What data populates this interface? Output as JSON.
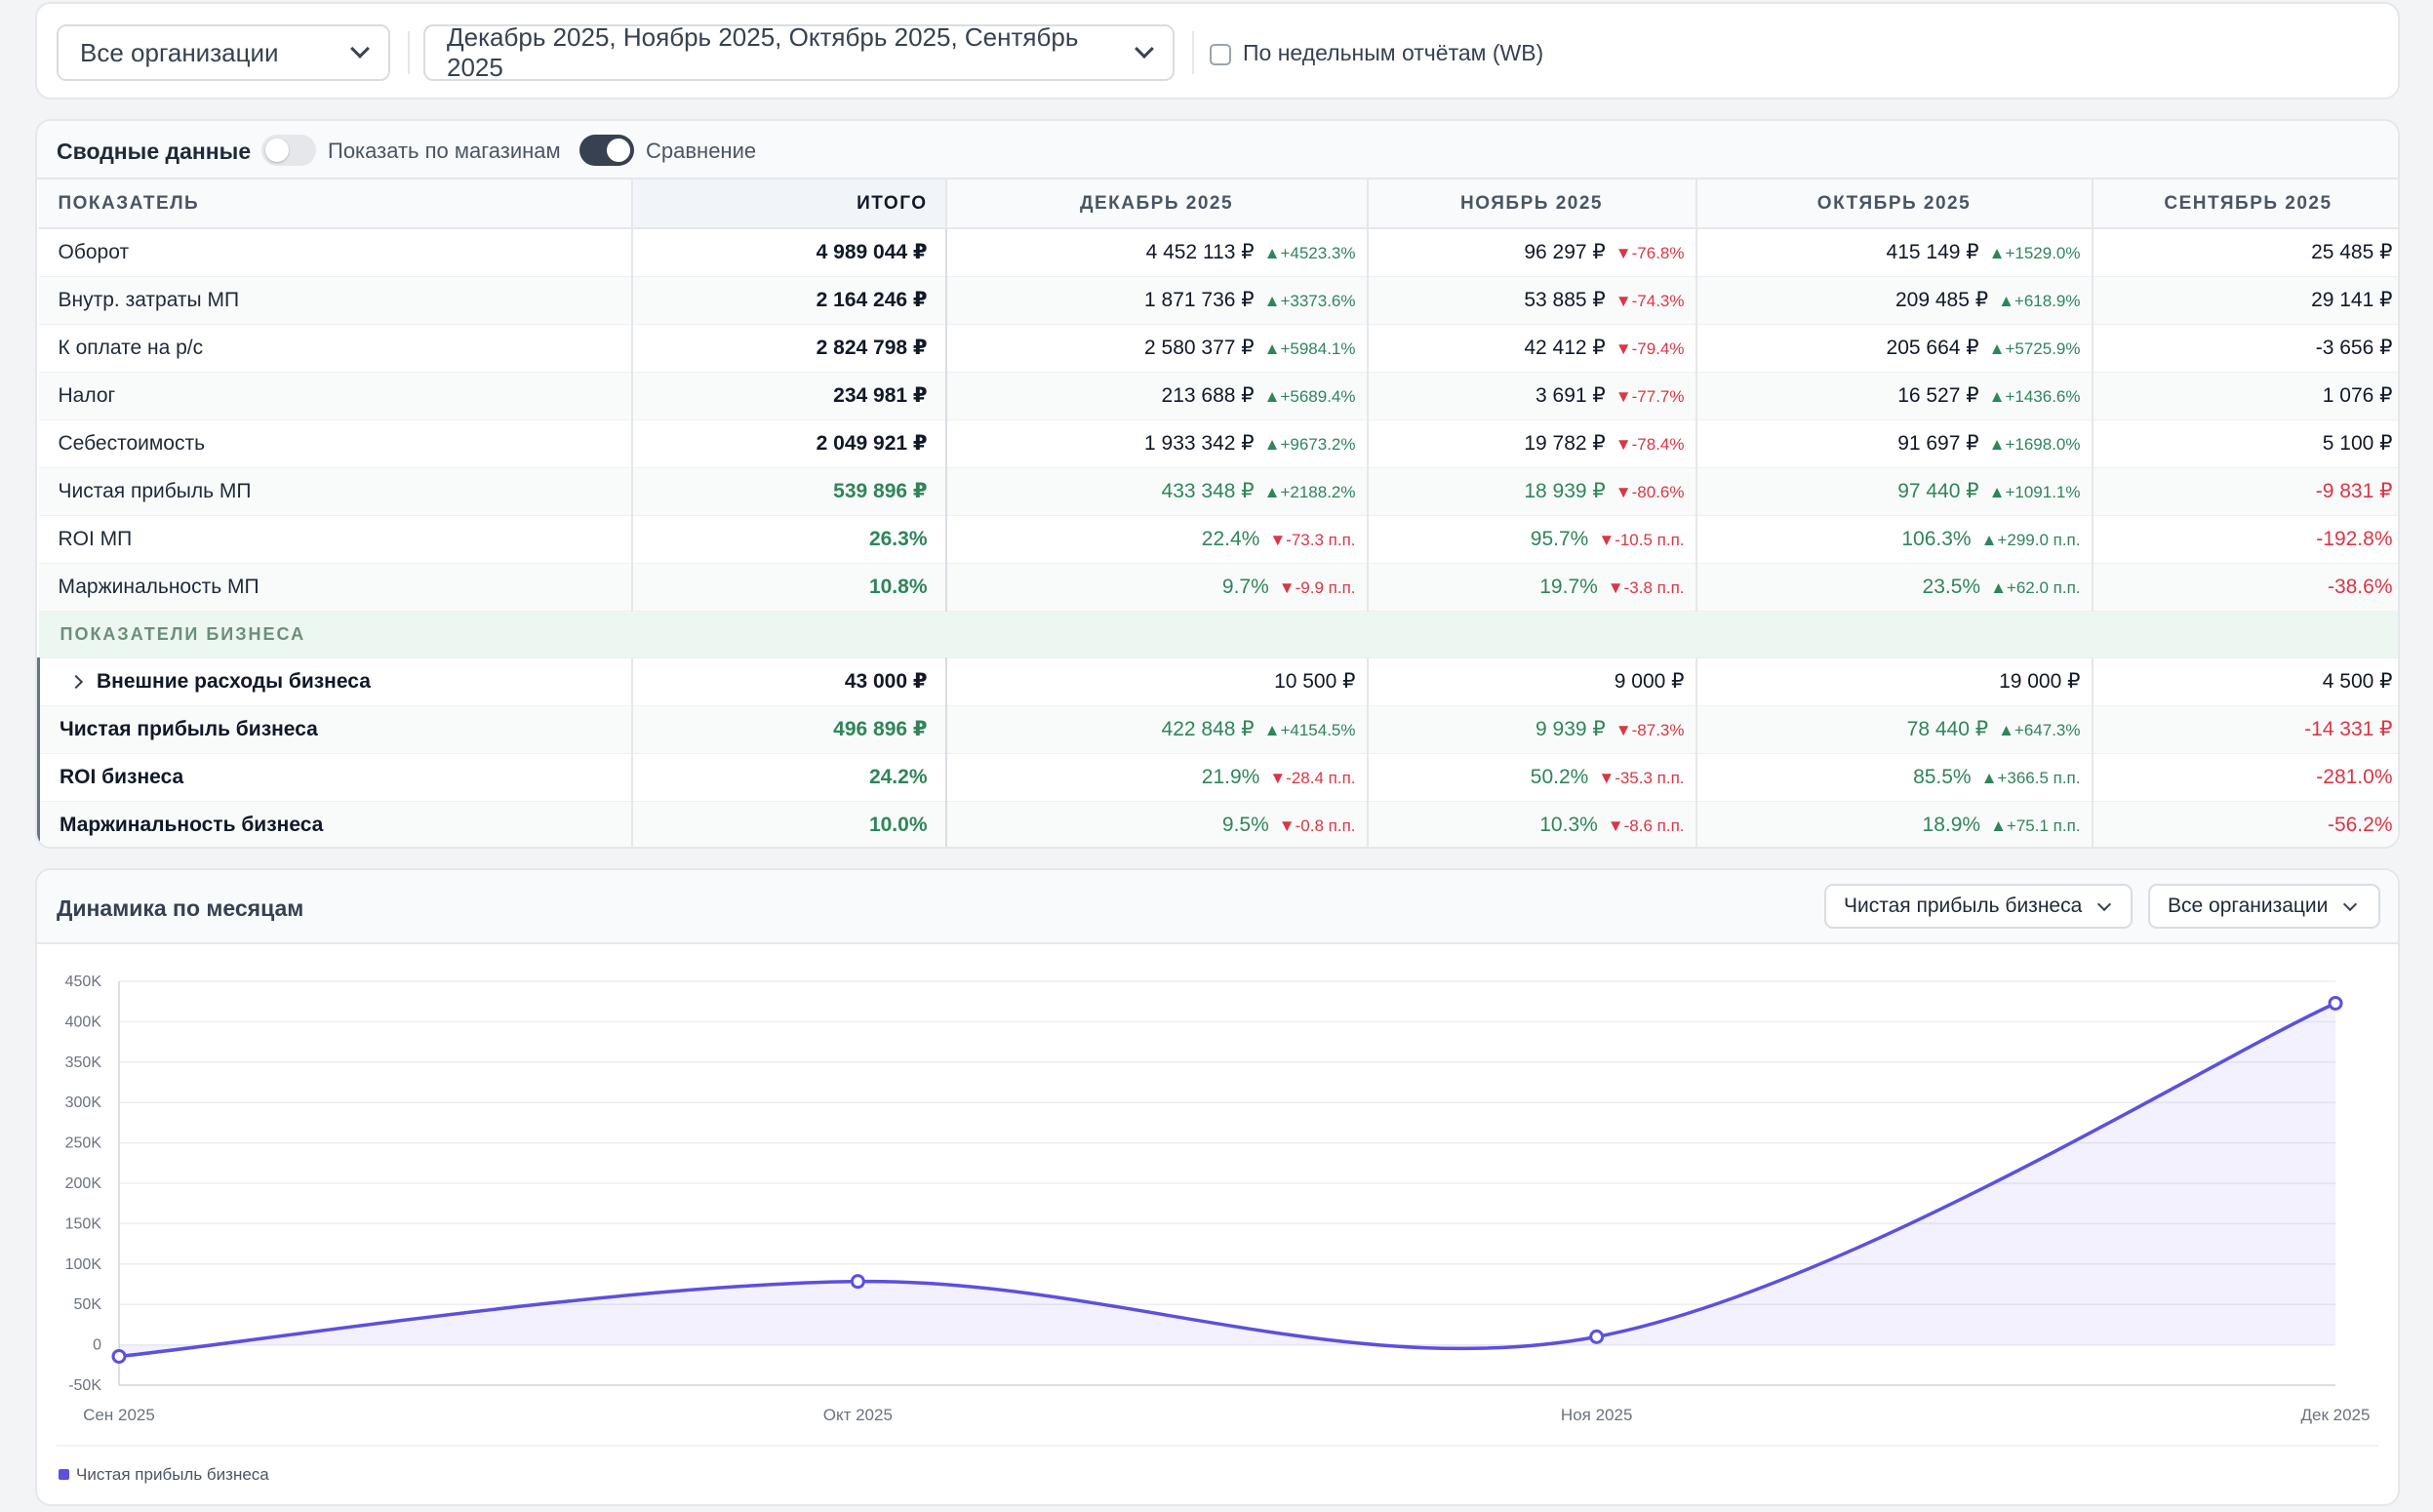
{
  "filters": {
    "org_select": "Все организации",
    "period_select": "Декабрь 2025, Ноябрь 2025, Октябрь 2025, Сентябрь 2025",
    "weekly_label": "По недельным отчётам (WB)"
  },
  "summary": {
    "title": "Сводные данные",
    "toggle_stores_label": "Показать по магазинам",
    "toggle_stores_on": false,
    "toggle_compare_label": "Сравнение",
    "toggle_compare_on": true,
    "columns": [
      "ПОКАЗАТЕЛЬ",
      "ИТОГО",
      "ДЕКАБРЬ 2025",
      "НОЯБРЬ 2025",
      "ОКТЯБРЬ 2025",
      "СЕНТЯБРЬ 2025"
    ],
    "rows": [
      {
        "name": "Оборот",
        "total": "4 989 044 ₽",
        "cells": [
          {
            "v": "4 452 113 ₽",
            "d": "▲+4523.3%",
            "dir": "up"
          },
          {
            "v": "96 297 ₽",
            "d": "▼-76.8%",
            "dir": "down"
          },
          {
            "v": "415 149 ₽",
            "d": "▲+1529.0%",
            "dir": "up"
          },
          {
            "v": "25 485 ₽"
          }
        ]
      },
      {
        "name": "Внутр. затраты МП",
        "total": "2 164 246 ₽",
        "cells": [
          {
            "v": "1 871 736 ₽",
            "d": "▲+3373.6%",
            "dir": "up"
          },
          {
            "v": "53 885 ₽",
            "d": "▼-74.3%",
            "dir": "down"
          },
          {
            "v": "209 485 ₽",
            "d": "▲+618.9%",
            "dir": "up"
          },
          {
            "v": "29 141 ₽"
          }
        ]
      },
      {
        "name": "К оплате на р/с",
        "total": "2 824 798 ₽",
        "cells": [
          {
            "v": "2 580 377 ₽",
            "d": "▲+5984.1%",
            "dir": "up"
          },
          {
            "v": "42 412 ₽",
            "d": "▼-79.4%",
            "dir": "down"
          },
          {
            "v": "205 664 ₽",
            "d": "▲+5725.9%",
            "dir": "up"
          },
          {
            "v": "-3 656 ₽"
          }
        ]
      },
      {
        "name": "Налог",
        "total": "234 981 ₽",
        "cells": [
          {
            "v": "213 688 ₽",
            "d": "▲+5689.4%",
            "dir": "up"
          },
          {
            "v": "3 691 ₽",
            "d": "▼-77.7%",
            "dir": "down"
          },
          {
            "v": "16 527 ₽",
            "d": "▲+1436.6%",
            "dir": "up"
          },
          {
            "v": "1 076 ₽"
          }
        ]
      },
      {
        "name": "Себестоимость",
        "total": "2 049 921 ₽",
        "cells": [
          {
            "v": "1 933 342 ₽",
            "d": "▲+9673.2%",
            "dir": "up"
          },
          {
            "v": "19 782 ₽",
            "d": "▼-78.4%",
            "dir": "down"
          },
          {
            "v": "91 697 ₽",
            "d": "▲+1698.0%",
            "dir": "up"
          },
          {
            "v": "5 100 ₽"
          }
        ]
      },
      {
        "name": "Чистая прибыль МП",
        "total": "539 896 ₽",
        "tone": "pos",
        "cells": [
          {
            "v": "433 348 ₽",
            "d": "▲+2188.2%",
            "dir": "up",
            "tone": "pos"
          },
          {
            "v": "18 939 ₽",
            "d": "▼-80.6%",
            "dir": "down",
            "tone": "pos"
          },
          {
            "v": "97 440 ₽",
            "d": "▲+1091.1%",
            "dir": "up",
            "tone": "pos"
          },
          {
            "v": "-9 831 ₽",
            "tone": "neg"
          }
        ]
      },
      {
        "name": "ROI МП",
        "total": "26.3%",
        "tone": "pos",
        "cells": [
          {
            "v": "22.4%",
            "d": "▼-73.3 п.п.",
            "dir": "down",
            "tone": "pos"
          },
          {
            "v": "95.7%",
            "d": "▼-10.5 п.п.",
            "dir": "down",
            "tone": "pos"
          },
          {
            "v": "106.3%",
            "d": "▲+299.0 п.п.",
            "dir": "up",
            "tone": "pos"
          },
          {
            "v": "-192.8%",
            "tone": "neg"
          }
        ]
      },
      {
        "name": "Маржинальность МП",
        "total": "10.8%",
        "tone": "pos",
        "cells": [
          {
            "v": "9.7%",
            "d": "▼-9.9 п.п.",
            "dir": "down",
            "tone": "pos"
          },
          {
            "v": "19.7%",
            "d": "▼-3.8 п.п.",
            "dir": "down",
            "tone": "pos"
          },
          {
            "v": "23.5%",
            "d": "▲+62.0 п.п.",
            "dir": "up",
            "tone": "pos"
          },
          {
            "v": "-38.6%",
            "tone": "neg"
          }
        ]
      }
    ],
    "section_label": "ПОКАЗАТЕЛИ БИЗНЕСА",
    "business_rows": [
      {
        "name": "Внешние расходы бизнеса",
        "expandable": true,
        "total": "43 000 ₽",
        "cells": [
          {
            "v": "10 500 ₽"
          },
          {
            "v": "9 000 ₽"
          },
          {
            "v": "19 000 ₽"
          },
          {
            "v": "4 500 ₽"
          }
        ]
      },
      {
        "name": "Чистая прибыль бизнеса",
        "total": "496 896 ₽",
        "tone": "pos",
        "cells": [
          {
            "v": "422 848 ₽",
            "d": "▲+4154.5%",
            "dir": "up",
            "tone": "pos"
          },
          {
            "v": "9 939 ₽",
            "d": "▼-87.3%",
            "dir": "down",
            "tone": "pos"
          },
          {
            "v": "78 440 ₽",
            "d": "▲+647.3%",
            "dir": "up",
            "tone": "pos"
          },
          {
            "v": "-14 331 ₽",
            "tone": "neg"
          }
        ]
      },
      {
        "name": "ROI бизнеса",
        "total": "24.2%",
        "tone": "pos",
        "cells": [
          {
            "v": "21.9%",
            "d": "▼-28.4 п.п.",
            "dir": "down",
            "tone": "pos"
          },
          {
            "v": "50.2%",
            "d": "▼-35.3 п.п.",
            "dir": "down",
            "tone": "pos"
          },
          {
            "v": "85.5%",
            "d": "▲+366.5 п.п.",
            "dir": "up",
            "tone": "pos"
          },
          {
            "v": "-281.0%",
            "tone": "neg"
          }
        ]
      },
      {
        "name": "Маржинальность бизнеса",
        "total": "10.0%",
        "tone": "pos",
        "cells": [
          {
            "v": "9.5%",
            "d": "▼-0.8 п.п.",
            "dir": "down",
            "tone": "pos"
          },
          {
            "v": "10.3%",
            "d": "▼-8.6 п.п.",
            "dir": "down",
            "tone": "pos"
          },
          {
            "v": "18.9%",
            "d": "▲+75.1 п.п.",
            "dir": "up",
            "tone": "pos"
          },
          {
            "v": "-56.2%",
            "tone": "neg"
          }
        ]
      }
    ]
  },
  "dynamics": {
    "title": "Динамика по месяцам",
    "metric_select": "Чистая прибыль бизнеса",
    "org_select": "Все организации"
  },
  "chart_data": {
    "type": "area",
    "x": [
      "Сен 2025",
      "Окт 2025",
      "Ноя 2025",
      "Дек 2025"
    ],
    "series": [
      {
        "name": "Чистая прибыль бизнеса",
        "values": [
          -14331,
          78440,
          9939,
          422848
        ],
        "color": "#5b50e0"
      }
    ],
    "ylim": [
      -50000,
      450000
    ],
    "yticks": [
      "-50K",
      "0",
      "50K",
      "100K",
      "150K",
      "200K",
      "250K",
      "300K",
      "350K",
      "400K",
      "450K"
    ],
    "ytick_values": [
      -50000,
      0,
      50000,
      100000,
      150000,
      200000,
      250000,
      300000,
      350000,
      400000,
      450000
    ],
    "grid": true,
    "legend": "bottom-left"
  },
  "colors": {
    "accent": "#5b50e0",
    "positive": "#2f855a",
    "negative": "#dc3545"
  }
}
